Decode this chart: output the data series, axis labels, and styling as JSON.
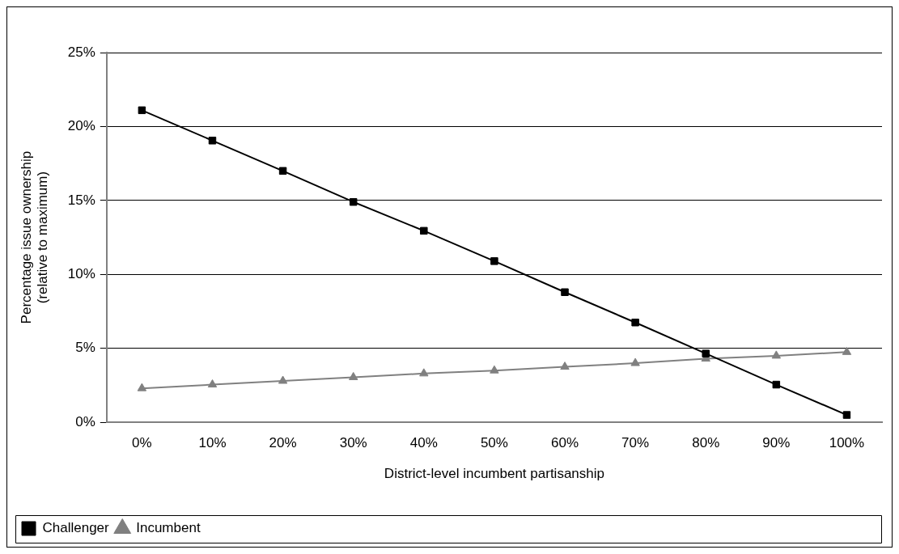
{
  "chart_data": {
    "type": "line",
    "xlabel": "District-level incumbent partisanship",
    "ylabel": "Percentage issue ownership\n(relative to maximum)",
    "categories": [
      "0%",
      "10%",
      "20%",
      "30%",
      "40%",
      "50%",
      "60%",
      "70%",
      "80%",
      "90%",
      "100%"
    ],
    "series": [
      {
        "name": "Challenger",
        "color": "#000000",
        "marker": "square",
        "values": [
          21.1,
          19.05,
          17.0,
          14.9,
          12.95,
          10.9,
          8.8,
          6.75,
          4.65,
          2.55,
          0.5
        ]
      },
      {
        "name": "Incumbent",
        "color": "#808080",
        "marker": "triangle",
        "values": [
          2.3,
          2.55,
          2.8,
          3.05,
          3.3,
          3.5,
          3.75,
          4.0,
          4.3,
          4.5,
          4.75
        ]
      }
    ],
    "ylim": [
      0,
      25
    ],
    "yticks": [
      {
        "value": 0,
        "label": "0%"
      },
      {
        "value": 5,
        "label": "5%"
      },
      {
        "value": 10,
        "label": "10%"
      },
      {
        "value": 15,
        "label": "15%"
      },
      {
        "value": 20,
        "label": "20%"
      },
      {
        "value": 25,
        "label": "25%"
      }
    ],
    "grid": "y",
    "legend": "bottom left",
    "line_style": "solid"
  }
}
